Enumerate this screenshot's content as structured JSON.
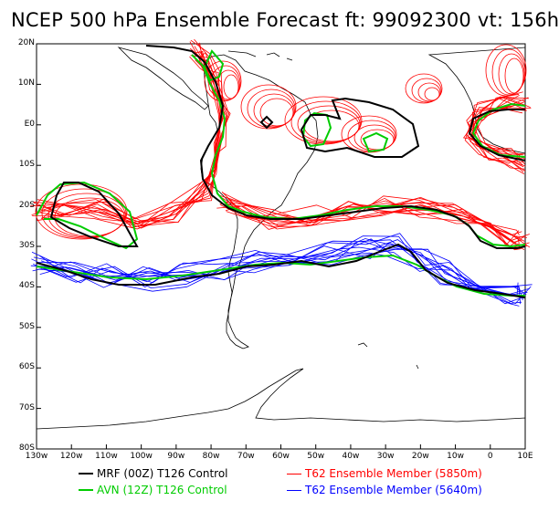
{
  "title": "NCEP 500 hPa Ensemble Forecast  ft: 99092300 vt: 156h",
  "colors": {
    "land": "#000000",
    "mrf": "#000000",
    "avn": "#00cc00",
    "t62_5850": "#ff0000",
    "t62_5640": "#0000ff"
  },
  "axes": {
    "lat_labels": [
      "20N",
      "10N",
      "E0",
      "10S",
      "20S",
      "30S",
      "40S",
      "50S",
      "60S",
      "70S",
      "80S"
    ],
    "lon_labels": [
      "130w",
      "120w",
      "110w",
      "100w",
      "90w",
      "80w",
      "70w",
      "60w",
      "50w",
      "40w",
      "30w",
      "20w",
      "10w",
      "0",
      "10E"
    ]
  },
  "legend": [
    {
      "label": "MRF (00Z) T126 Control",
      "color": "#000000",
      "text_color": "#000000"
    },
    {
      "label": "AVN (12Z) T126 Control",
      "color": "#00cc00",
      "text_color": "#00cc00"
    },
    {
      "label": "T62 Ensemble Member (5850m)",
      "color": "#ff0000",
      "text_color": "#ff0000"
    },
    {
      "label": "T62 Ensemble Member (5640m)",
      "color": "#0000ff",
      "text_color": "#0000ff"
    }
  ]
}
